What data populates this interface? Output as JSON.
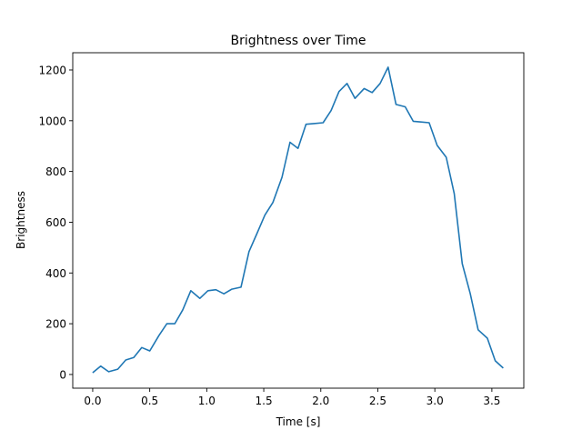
{
  "chart_data": {
    "type": "line",
    "title": "Brightness over Time",
    "xlabel": "Time [s]",
    "ylabel": "Brightness",
    "xlim": [
      -0.175,
      3.78
    ],
    "ylim": [
      -54,
      1268
    ],
    "xticks": [
      0.0,
      0.5,
      1.0,
      1.5,
      2.0,
      2.5,
      3.0,
      3.5
    ],
    "xtick_labels": [
      "0.0",
      "0.5",
      "1.0",
      "1.5",
      "2.0",
      "2.5",
      "3.0",
      "3.5"
    ],
    "yticks": [
      0,
      200,
      400,
      600,
      800,
      1000,
      1200
    ],
    "ytick_labels": [
      "0",
      "200",
      "400",
      "600",
      "800",
      "1000",
      "1200"
    ],
    "grid": false,
    "series": [
      {
        "name": "Brightness",
        "color": "#1f77b4",
        "x": [
          0,
          0.07,
          0.14,
          0.22,
          0.29,
          0.36,
          0.43,
          0.5,
          0.58,
          0.65,
          0.72,
          0.79,
          0.86,
          0.94,
          1.01,
          1.08,
          1.15,
          1.22,
          1.3,
          1.37,
          1.44,
          1.51,
          1.58,
          1.66,
          1.73,
          1.8,
          1.87,
          1.94,
          2.02,
          2.09,
          2.16,
          2.23,
          2.3,
          2.38,
          2.45,
          2.52,
          2.59,
          2.66,
          2.74,
          2.81,
          2.88,
          2.95,
          3.02,
          3.1,
          3.17,
          3.24,
          3.31,
          3.38,
          3.46,
          3.53,
          3.6
        ],
        "y": [
          7,
          33,
          11,
          21,
          57,
          67,
          106,
          93,
          153,
          200,
          200,
          255,
          330,
          300,
          330,
          334,
          318,
          336,
          344,
          484,
          555,
          628,
          678,
          777,
          915,
          891,
          986,
          989,
          992,
          1040,
          1115,
          1147,
          1088,
          1127,
          1111,
          1147,
          1211,
          1064,
          1055,
          998,
          995,
          992,
          903,
          856,
          713,
          437,
          319,
          176,
          143,
          54,
          25
        ]
      }
    ]
  }
}
